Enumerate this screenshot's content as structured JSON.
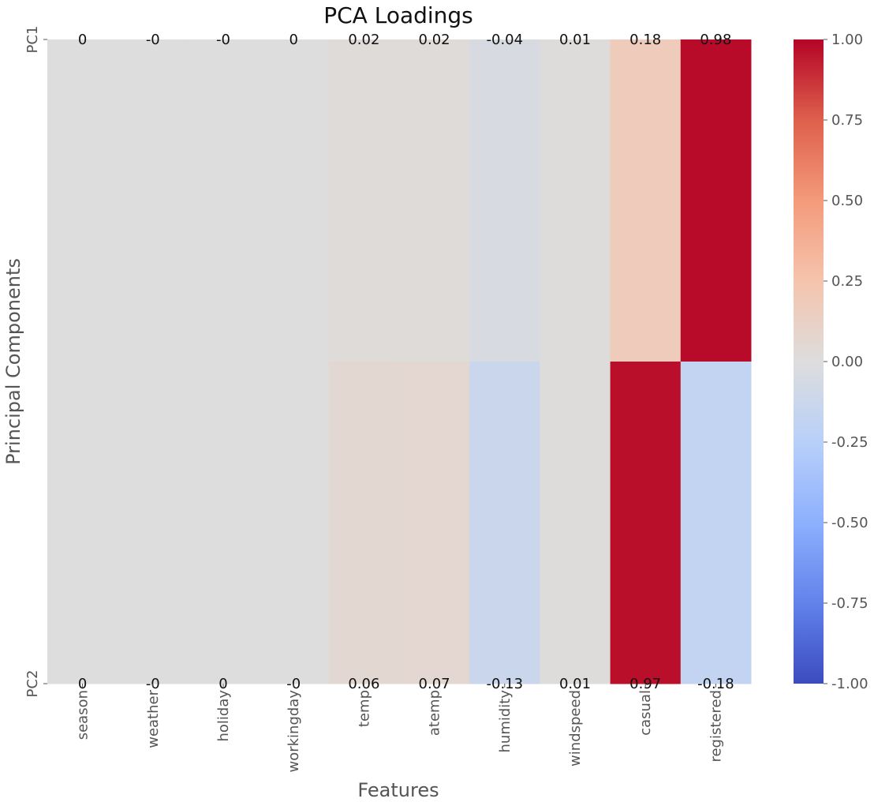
{
  "chart_data": {
    "type": "heatmap",
    "title": "PCA Loadings",
    "xlabel": "Features",
    "ylabel": "Principal Components",
    "rows": [
      "PC1",
      "PC2"
    ],
    "columns": [
      "season",
      "weather",
      "holiday",
      "workingday",
      "temp",
      "atemp",
      "humidity",
      "windspeed",
      "casual",
      "registered"
    ],
    "values": [
      [
        0.0,
        -0.001,
        -0.001,
        0.0,
        0.02,
        0.02,
        -0.04,
        0.01,
        0.18,
        0.98
      ],
      [
        0.0,
        -0.001,
        0.0,
        -0.001,
        0.06,
        0.07,
        -0.13,
        0.01,
        0.97,
        -0.18
      ]
    ],
    "cell_labels": [
      [
        "0",
        "-0",
        "-0",
        "0",
        "0.02",
        "0.02",
        "-0.04",
        "0.01",
        "0.18",
        "0.98"
      ],
      [
        "0",
        "-0",
        "0",
        "-0",
        "0.06",
        "0.07",
        "-0.13",
        "0.01",
        "0.97",
        "-0.18"
      ]
    ],
    "colormap": "coolwarm",
    "vmin": -1.0,
    "vmax": 1.0,
    "colorbar_ticks": [
      1.0,
      0.75,
      0.5,
      0.25,
      0.0,
      -0.25,
      -0.5,
      -0.75,
      -1.0
    ],
    "colorbar_tick_labels": [
      "1.00",
      "0.75",
      "0.50",
      "0.25",
      "0.00",
      "-0.25",
      "-0.50",
      "-0.75",
      "-1.00"
    ]
  }
}
